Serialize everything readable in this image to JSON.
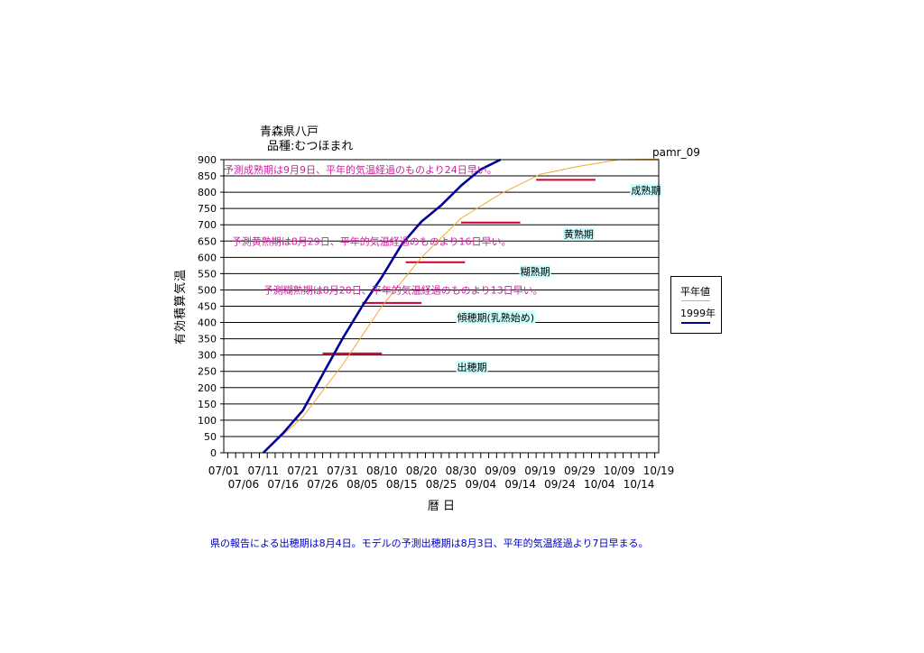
{
  "header": {
    "location": "青森県八戸",
    "variety": "品種:むつほまれ",
    "code": "pamr_09"
  },
  "footnote": "県の報告による出穂期は8月4日。モデルの予測出穂期は8月3日、平年的気温経過より7日早まる。",
  "legend": {
    "normal": "平年値",
    "year1999": "1999年"
  },
  "colors": {
    "normal": "#f0a830",
    "year1999": "#000099",
    "marker": "#cc0033",
    "predictText": "#d020a0",
    "stageBg": "#ccffff"
  },
  "chart_data": {
    "type": "line",
    "title": "",
    "xlabel": "暦 日",
    "ylabel": "有効積算気温",
    "ylim": [
      0,
      900
    ],
    "yticks": [
      0,
      50,
      100,
      150,
      200,
      250,
      300,
      350,
      400,
      450,
      500,
      550,
      600,
      650,
      700,
      750,
      800,
      850,
      900
    ],
    "xlim_day_index": [
      0,
      110
    ],
    "xticks_row1": [
      "07/01",
      "07/11",
      "07/21",
      "07/31",
      "08/10",
      "08/20",
      "08/30",
      "09/09",
      "09/19",
      "09/29",
      "10/09",
      "10/19"
    ],
    "xticks_row2": [
      "07/06",
      "07/16",
      "07/26",
      "08/05",
      "08/15",
      "08/25",
      "09/04",
      "09/14",
      "09/24",
      "10/04",
      "10/14"
    ],
    "grid": true,
    "legend_position": "right",
    "series": [
      {
        "name": "平年値",
        "x": [
          "07/11",
          "07/21",
          "07/31",
          "08/10",
          "08/20",
          "08/30",
          "09/09",
          "09/19",
          "09/29",
          "10/09",
          "10/19"
        ],
        "y": [
          0,
          110,
          270,
          450,
          600,
          720,
          795,
          855,
          880,
          900,
          902
        ]
      },
      {
        "name": "1999年",
        "x": [
          "07/11",
          "07/16",
          "07/21",
          "07/26",
          "07/31",
          "08/05",
          "08/10",
          "08/15",
          "08/20",
          "08/25",
          "08/30",
          "09/04",
          "09/09"
        ],
        "y": [
          0,
          60,
          130,
          240,
          350,
          450,
          540,
          640,
          710,
          760,
          820,
          870,
          900
        ]
      }
    ],
    "stage_markers": [
      {
        "x_start": "07/26",
        "x_end": "08/10",
        "y": 305
      },
      {
        "x_start": "08/05",
        "x_end": "08/20",
        "y": 460
      },
      {
        "x_start": "08/16",
        "x_end": "08/31",
        "y": 585
      },
      {
        "x_start": "08/30",
        "x_end": "09/14",
        "y": 707
      },
      {
        "x_start": "09/18",
        "x_end": "10/03",
        "y": 838
      }
    ],
    "stage_labels": [
      {
        "text": "出穂期",
        "x": "08/29",
        "y": 252
      },
      {
        "text": "傾穂期(乳熟始め)",
        "x": "08/29",
        "y": 405
      },
      {
        "text": "糊熟期",
        "x": "09/14",
        "y": 545
      },
      {
        "text": "黄熟期",
        "x": "09/25",
        "y": 660
      },
      {
        "text": "成熟期",
        "x": "10/12",
        "y": 795
      }
    ],
    "prediction_texts": [
      {
        "text": "予測成熟期は9月9日、平年的気温経過のものより24日早い。",
        "x": "07/01",
        "y": 870
      },
      {
        "text": "予測黄熟期は8月29日、平年的気温経過のものより16日早い。",
        "x": "07/03",
        "y": 650
      },
      {
        "text": "予測糊熟期は8月20日、平年的気温経過のものより13日早い。",
        "x": "07/11",
        "y": 500
      }
    ]
  }
}
